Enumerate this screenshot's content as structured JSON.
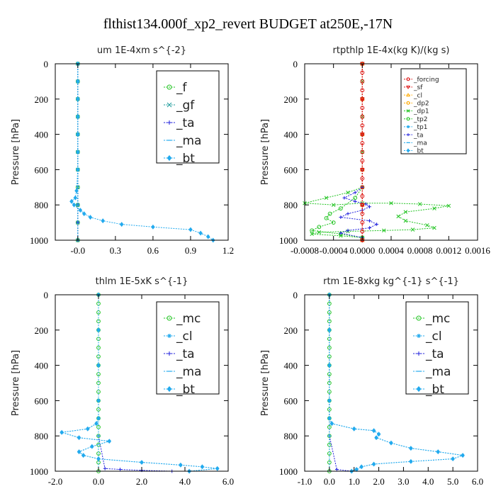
{
  "title": "flthist134.000f_xp2_revert  BUDGET at250E,-17N",
  "colors": {
    "green": "#22c422",
    "teal": "#1a9a9a",
    "blue": "#2222dd",
    "cyan": "#22aaee",
    "red": "#dd1111",
    "orange": "#ffaa00",
    "dark": "#000000"
  },
  "chart_data": [
    {
      "type": "line",
      "title": "um   1E-4xm s^{-2}",
      "ylabel": "Pressure [hPa]",
      "xlim": [
        -0.18,
        1.2
      ],
      "ylim": [
        1000,
        0
      ],
      "x_ticks": [
        0,
        0.3,
        0.6,
        0.9,
        1.2
      ],
      "x_tick_labels": [
        "-0.0",
        "0.3",
        "0.6",
        "0.9",
        "1.2"
      ],
      "y_ticks": [
        0,
        200,
        400,
        600,
        800,
        1000
      ],
      "y_tick_labels": [
        "0",
        "200",
        "400",
        "600",
        "800",
        "1000"
      ],
      "legend_position": "top-right",
      "series": [
        {
          "name": "_f",
          "color_key": "green",
          "marker": "circle",
          "x": [
            0,
            0,
            0,
            0,
            0,
            0,
            0,
            0,
            0,
            0,
            0
          ],
          "y": [
            0,
            100,
            200,
            300,
            400,
            500,
            600,
            700,
            800,
            900,
            1000
          ]
        },
        {
          "name": "_gf",
          "color_key": "teal",
          "marker": "x",
          "x": [
            0,
            0,
            0,
            0,
            0,
            0,
            0,
            0,
            0,
            0,
            0
          ],
          "y": [
            0,
            100,
            200,
            300,
            400,
            500,
            600,
            700,
            800,
            900,
            1000
          ]
        },
        {
          "name": "_ta",
          "color_key": "blue",
          "marker": "plus",
          "x": [
            0,
            0,
            0,
            0,
            0,
            0,
            0
          ],
          "y": [
            0,
            200,
            400,
            600,
            800,
            900,
            1000
          ]
        },
        {
          "name": "_ma",
          "color_key": "cyan",
          "marker": "dash",
          "x": [
            0,
            0,
            0,
            0,
            0,
            0
          ],
          "y": [
            0,
            200,
            400,
            600,
            800,
            1000
          ]
        },
        {
          "name": "_bt",
          "color_key": "cyan",
          "marker": "diamond",
          "x": [
            0,
            0,
            0,
            0,
            0,
            0,
            0,
            -0.01,
            -0.02,
            -0.05,
            -0.03,
            0.02,
            0.05,
            0.1,
            0.2,
            0.35,
            0.6,
            0.9,
            0.98,
            1.04,
            1.08
          ],
          "y": [
            0,
            100,
            200,
            300,
            400,
            500,
            600,
            720,
            760,
            780,
            800,
            830,
            850,
            870,
            890,
            910,
            925,
            940,
            960,
            980,
            1000
          ]
        }
      ]
    },
    {
      "type": "line",
      "title": "rtpthlp   1E-4x(kg K)/(kg s)",
      "ylabel": "Pressure [hPa]",
      "xlim": [
        -0.0008,
        0.0016
      ],
      "ylim": [
        1000,
        0
      ],
      "x_ticks": [
        -0.0008,
        -0.0004,
        0,
        0.0004,
        0.0008,
        0.0012,
        0.0016
      ],
      "x_tick_labels": [
        "-0.0008",
        "-0.0004",
        "0.0000",
        "0.0004",
        "0.0008",
        "0.0012",
        "0.0016"
      ],
      "y_ticks": [
        0,
        200,
        400,
        600,
        800,
        1000
      ],
      "y_tick_labels": [
        "0",
        "200",
        "400",
        "600",
        "800",
        "1000"
      ],
      "legend_position": "top-right",
      "series": [
        {
          "name": "_dp1",
          "color_key": "green",
          "marker": "x",
          "x": [
            0,
            0,
            0,
            0,
            0,
            0,
            0,
            -0.0002,
            -0.0005,
            -0.0008,
            -0.0004,
            0,
            0.0004,
            0.0008,
            0.0012,
            0.001,
            0.0006,
            0.0005,
            0.0006,
            0.0009,
            0.001,
            0.0007,
            0.0003,
            -0.0002,
            -0.0006,
            -0.0007,
            -0.0003,
            0
          ],
          "y": [
            0,
            100,
            200,
            300,
            400,
            500,
            700,
            730,
            760,
            790,
            800,
            790,
            790,
            795,
            805,
            820,
            840,
            865,
            890,
            915,
            930,
            940,
            945,
            950,
            955,
            965,
            975,
            985
          ]
        },
        {
          "name": "_tp2",
          "color_key": "green",
          "marker": "circle",
          "x": [
            0,
            0,
            0,
            0,
            -0.0001,
            -0.0003,
            -0.00045,
            -0.0005,
            -0.0004,
            -0.0006,
            -0.0007,
            -0.0003,
            0
          ],
          "y": [
            0,
            200,
            400,
            700,
            760,
            820,
            850,
            875,
            900,
            925,
            945,
            965,
            985
          ]
        },
        {
          "name": "_tp1",
          "color_key": "cyan",
          "marker": "star",
          "x": [
            0,
            0,
            0,
            0,
            0,
            0
          ],
          "y": [
            0,
            200,
            400,
            600,
            800,
            1000
          ]
        },
        {
          "name": "_ta",
          "color_key": "blue",
          "marker": "plus",
          "x": [
            0,
            0,
            0,
            -0.0001,
            -0.00025,
            -0.0001,
            5e-05,
            0.0001,
            0,
            -0.0002,
            -0.0003,
            0.0001,
            0.0002,
            0.0001,
            -0.0002,
            -0.0003,
            0
          ],
          "y": [
            0,
            400,
            700,
            730,
            760,
            780,
            795,
            810,
            830,
            850,
            870,
            890,
            910,
            930,
            945,
            960,
            985
          ]
        },
        {
          "name": "_ma",
          "color_key": "cyan",
          "marker": "dash",
          "x": [
            0,
            0,
            0,
            0,
            0,
            0
          ],
          "y": [
            0,
            200,
            400,
            600,
            800,
            1000
          ]
        },
        {
          "name": "_bt",
          "color_key": "cyan",
          "marker": "diamond",
          "x": [
            0,
            0,
            0,
            0,
            0,
            0
          ],
          "y": [
            0,
            200,
            400,
            600,
            800,
            1000
          ]
        },
        {
          "name": "_cl",
          "color_key": "orange",
          "marker": "triangle",
          "x": [
            0,
            0,
            0,
            0,
            0,
            0
          ],
          "y": [
            0,
            200,
            400,
            600,
            800,
            1000
          ]
        },
        {
          "name": "_dp2",
          "color_key": "orange",
          "marker": "circle",
          "x": [
            0,
            0,
            0,
            0,
            0,
            0
          ],
          "y": [
            0,
            200,
            400,
            600,
            800,
            1000
          ]
        },
        {
          "name": "_sf",
          "color_key": "red",
          "marker": "triangle-down",
          "x": [
            0,
            0,
            0,
            0,
            0,
            0
          ],
          "y": [
            0,
            200,
            400,
            600,
            800,
            1000
          ]
        },
        {
          "name": "_forcing",
          "color_key": "red",
          "marker": "circle",
          "x": [
            0,
            0,
            0,
            0,
            0,
            0,
            0,
            0,
            0,
            0,
            0,
            0,
            0,
            0,
            0,
            0,
            0,
            0,
            0,
            0,
            0
          ],
          "y": [
            0,
            50,
            100,
            150,
            200,
            250,
            300,
            350,
            400,
            450,
            500,
            550,
            600,
            650,
            700,
            750,
            800,
            850,
            900,
            950,
            1000
          ]
        }
      ],
      "legend_order": [
        "_forcing",
        "_sf",
        "_cl",
        "_dp2",
        "_dp1",
        "_tp2",
        "_tp1",
        "_ta",
        "_ma",
        "_bt"
      ]
    },
    {
      "type": "line",
      "title": "thlm   1E-5xK s^{-1}",
      "ylabel": "Pressure [hPa]",
      "xlim": [
        -2.0,
        6.0
      ],
      "ylim": [
        1000,
        0
      ],
      "x_ticks": [
        -2,
        0,
        2,
        4,
        6
      ],
      "x_tick_labels": [
        "-2.0",
        "0.0",
        "2.0",
        "4.0",
        "6.0"
      ],
      "y_ticks": [
        0,
        200,
        400,
        600,
        800,
        1000
      ],
      "y_tick_labels": [
        "0",
        "200",
        "400",
        "600",
        "800",
        "1000"
      ],
      "legend_position": "top-right",
      "series": [
        {
          "name": "_mc",
          "color_key": "green",
          "marker": "circle",
          "x": [
            0,
            0,
            0,
            0,
            0,
            0,
            0,
            0,
            0,
            0,
            0,
            0,
            0,
            0,
            0,
            0,
            0,
            0,
            0,
            0,
            0
          ],
          "y": [
            0,
            50,
            100,
            150,
            200,
            250,
            300,
            350,
            400,
            450,
            500,
            550,
            600,
            650,
            700,
            750,
            800,
            850,
            900,
            950,
            1000
          ]
        },
        {
          "name": "_cl",
          "color_key": "cyan",
          "marker": "star",
          "x": [
            0,
            0,
            0,
            0,
            0,
            -0.1,
            -0.5,
            -1.7,
            -0.9,
            0.5,
            -0.3,
            -0.9,
            -0.7,
            0,
            2.0,
            3.8,
            4.8,
            5.5,
            4.2
          ],
          "y": [
            0,
            200,
            400,
            600,
            700,
            730,
            760,
            780,
            810,
            830,
            860,
            890,
            910,
            930,
            950,
            965,
            975,
            985,
            1000
          ]
        },
        {
          "name": "_ta",
          "color_key": "blue",
          "marker": "plus",
          "x": [
            0,
            0,
            0,
            0,
            0,
            0.3,
            1.0,
            2.0,
            3.4
          ],
          "y": [
            0,
            200,
            400,
            600,
            800,
            985,
            990,
            995,
            1000
          ]
        },
        {
          "name": "_ma",
          "color_key": "cyan",
          "marker": "dash",
          "x": [
            0,
            0,
            0,
            0,
            0,
            0
          ],
          "y": [
            0,
            200,
            400,
            600,
            800,
            1000
          ]
        },
        {
          "name": "_bt",
          "color_key": "cyan",
          "marker": "diamond",
          "x": [
            0,
            0,
            0,
            0,
            0,
            -0.1,
            -0.5,
            -1.7,
            -0.9,
            0.5,
            -0.3,
            -0.9,
            -0.7,
            0,
            2.0,
            3.8,
            4.8,
            5.5,
            4.2
          ],
          "y": [
            0,
            200,
            400,
            600,
            700,
            730,
            760,
            780,
            810,
            830,
            860,
            890,
            910,
            930,
            950,
            965,
            975,
            985,
            1000
          ]
        }
      ]
    },
    {
      "type": "line",
      "title": "rtm   1E-8xkg kg^{-1} s^{-1}",
      "ylabel": "Pressure [hPa]",
      "xlim": [
        -1.0,
        6.0
      ],
      "ylim": [
        1000,
        0
      ],
      "x_ticks": [
        -1,
        0,
        1,
        2,
        3,
        4,
        5,
        6
      ],
      "x_tick_labels": [
        "-1.0",
        "0.0",
        "1.0",
        "2.0",
        "3.0",
        "4.0",
        "5.0",
        "6.0"
      ],
      "y_ticks": [
        0,
        200,
        400,
        600,
        800,
        1000
      ],
      "y_tick_labels": [
        "0",
        "200",
        "400",
        "600",
        "800",
        "1000"
      ],
      "legend_position": "top-right",
      "series": [
        {
          "name": "_mc",
          "color_key": "green",
          "marker": "circle",
          "x": [
            0,
            0,
            0,
            0,
            0,
            0,
            0,
            0,
            0,
            0,
            0,
            0,
            0,
            0,
            0,
            0,
            0,
            0,
            0,
            0,
            0
          ],
          "y": [
            0,
            50,
            100,
            150,
            200,
            250,
            300,
            350,
            400,
            450,
            500,
            550,
            600,
            650,
            700,
            750,
            800,
            850,
            900,
            950,
            1000
          ]
        },
        {
          "name": "_cl",
          "color_key": "cyan",
          "marker": "star",
          "x": [
            0,
            0,
            0,
            0,
            0,
            0.1,
            1.0,
            1.8,
            2.0,
            1.9,
            2.5,
            3.3,
            4.4,
            5.4,
            5.0,
            3.3,
            1.8,
            1.3,
            1.1,
            0.9
          ],
          "y": [
            0,
            200,
            400,
            600,
            700,
            730,
            760,
            770,
            790,
            810,
            840,
            870,
            890,
            910,
            930,
            945,
            960,
            975,
            990,
            1000
          ]
        },
        {
          "name": "_ta",
          "color_key": "blue",
          "marker": "plus",
          "x": [
            0,
            0,
            0,
            0,
            0,
            0.3,
            0.9
          ],
          "y": [
            0,
            200,
            400,
            600,
            800,
            990,
            1000
          ]
        },
        {
          "name": "_ma",
          "color_key": "cyan",
          "marker": "dash",
          "x": [
            0,
            0,
            0,
            0,
            0,
            0
          ],
          "y": [
            0,
            200,
            400,
            600,
            800,
            1000
          ]
        },
        {
          "name": "_bt",
          "color_key": "cyan",
          "marker": "diamond",
          "x": [
            0,
            0,
            0,
            0,
            0,
            0.1,
            1.0,
            1.8,
            2.0,
            1.9,
            2.5,
            3.3,
            4.4,
            5.4,
            5.0,
            3.3,
            1.8,
            1.3,
            1.1,
            0.9
          ],
          "y": [
            0,
            200,
            400,
            600,
            700,
            730,
            760,
            770,
            790,
            810,
            840,
            870,
            890,
            910,
            930,
            945,
            960,
            975,
            990,
            1000
          ]
        }
      ]
    }
  ]
}
